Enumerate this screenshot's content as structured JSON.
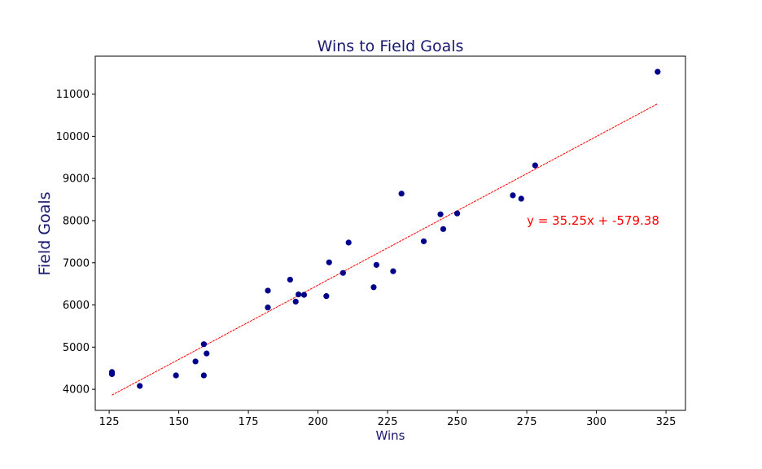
{
  "chart_data": {
    "type": "scatter",
    "title": "Wins to Field Goals",
    "xlabel": "Wins",
    "ylabel": "Field Goals",
    "xlim": [
      120,
      332
    ],
    "ylim": [
      3500,
      11900
    ],
    "xticks": [
      125,
      150,
      175,
      200,
      225,
      250,
      275,
      300,
      325
    ],
    "yticks": [
      4000,
      5000,
      6000,
      7000,
      8000,
      9000,
      10000,
      11000
    ],
    "grid": false,
    "series": [
      {
        "points": [
          [
            126,
            4410
          ],
          [
            126,
            4360
          ],
          [
            136,
            4080
          ],
          [
            149,
            4330
          ],
          [
            156,
            4660
          ],
          [
            159,
            4330
          ],
          [
            159,
            5070
          ],
          [
            160,
            4850
          ],
          [
            182,
            6340
          ],
          [
            182,
            5940
          ],
          [
            190,
            6600
          ],
          [
            192,
            6080
          ],
          [
            193,
            6250
          ],
          [
            195,
            6240
          ],
          [
            203,
            6210
          ],
          [
            204,
            7010
          ],
          [
            209,
            6760
          ],
          [
            211,
            7480
          ],
          [
            220,
            6420
          ],
          [
            221,
            6950
          ],
          [
            227,
            6800
          ],
          [
            230,
            8640
          ],
          [
            238,
            7510
          ],
          [
            244,
            8150
          ],
          [
            245,
            7800
          ],
          [
            250,
            8170
          ],
          [
            270,
            8600
          ],
          [
            273,
            8520
          ],
          [
            278,
            9310
          ],
          [
            322,
            11530
          ]
        ]
      }
    ],
    "regression": {
      "slope": 35.25,
      "intercept": -579.38,
      "x_range": [
        126,
        322
      ]
    },
    "annotation": {
      "text": "y = 35.25x + -579.38",
      "x": 275,
      "y": 8000
    },
    "colors": {
      "points": "#00008b",
      "line": "#ff0000",
      "annotation": "#ff0000",
      "title": "#191970",
      "labels": "#191970"
    }
  }
}
